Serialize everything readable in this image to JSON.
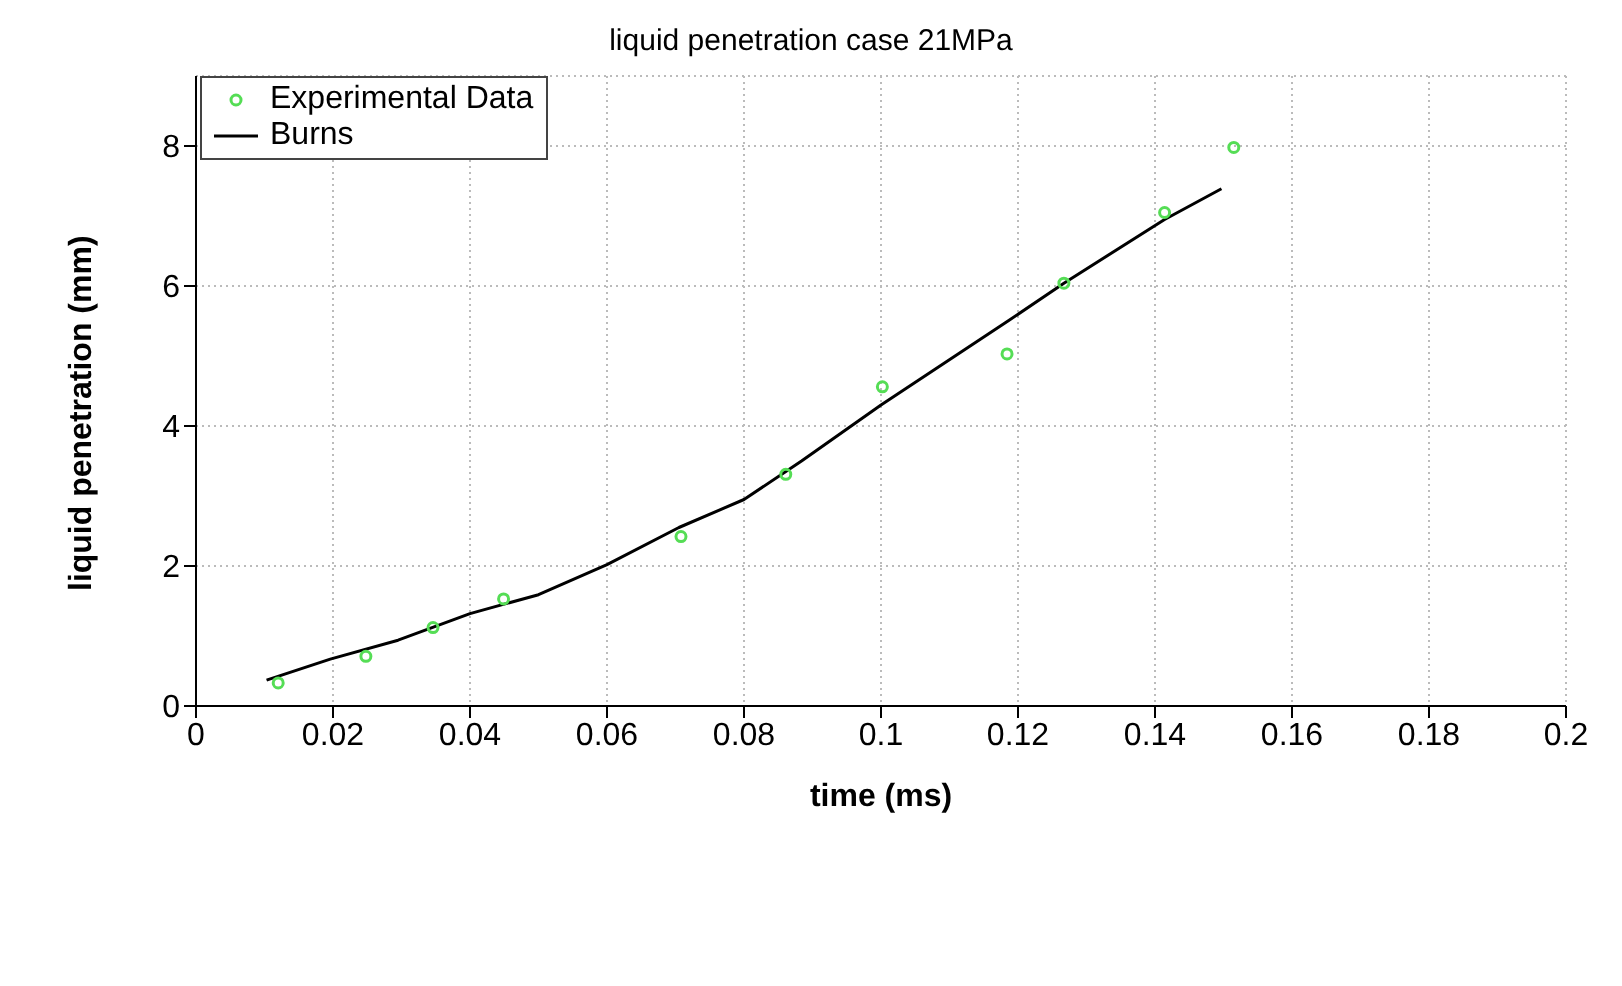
{
  "chart_data": {
    "type": "line",
    "title": "liquid penetration case 21MPa",
    "xlabel": "time (ms)",
    "ylabel": "liquid penetration (mm)",
    "xlim": [
      0,
      0.2
    ],
    "xticks": [
      0,
      0.02,
      0.04,
      0.06,
      0.08,
      0.1,
      0.12,
      0.14,
      0.16,
      0.18,
      0.2
    ],
    "ylim": [
      0,
      9
    ],
    "yticks": [
      0,
      2,
      4,
      6,
      8
    ],
    "grid": true,
    "legend": "top left",
    "series": [
      {
        "name": "Experimental Data",
        "type": "scatter",
        "marker": "circle",
        "color": "#55dd55",
        "x": [
          0.012,
          0.0248,
          0.0346,
          0.0449,
          0.0708,
          0.0861,
          0.1002,
          0.1184,
          0.1267,
          0.1414,
          0.1515
        ],
        "values": [
          0.33,
          0.71,
          1.12,
          1.53,
          2.42,
          3.31,
          4.56,
          5.03,
          6.04,
          7.05,
          7.98
        ]
      },
      {
        "name": "Burns",
        "marker": "none",
        "line_style": "solid",
        "color": "#000000",
        "x": [
          0.0103,
          0.0196,
          0.0295,
          0.04,
          0.05,
          0.06,
          0.0705,
          0.08,
          0.0884,
          0.1,
          0.1187,
          0.1267,
          0.1414,
          0.1497
        ],
        "values": [
          0.37,
          0.67,
          0.94,
          1.32,
          1.59,
          2.02,
          2.55,
          2.95,
          3.5,
          4.3,
          5.51,
          6.04,
          6.95,
          7.39
        ]
      }
    ]
  }
}
